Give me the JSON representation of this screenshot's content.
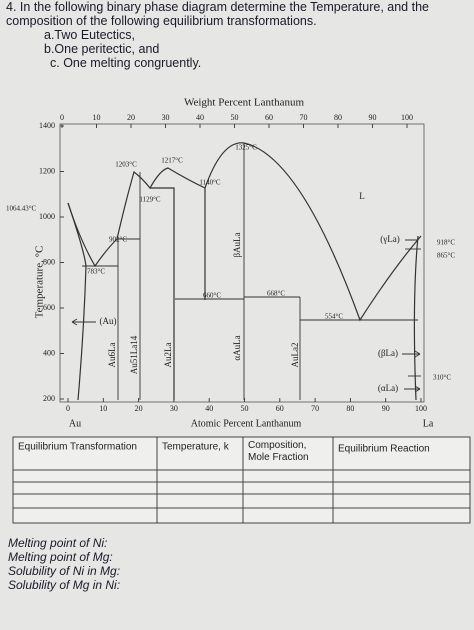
{
  "header": {
    "number": "4.",
    "question": "In the following binary phase diagram determine the Temperature, and the composition of the following equilibrium transformations.",
    "items": [
      "a.Two Eutectics,",
      "b.One peritectic, and",
      "c. One melting congruently."
    ]
  },
  "diagram": {
    "title": "Weight Percent Lanthanum",
    "top_ticks": [
      "0",
      "10",
      "20",
      "30",
      "40",
      "50",
      "60",
      "70",
      "80",
      "90",
      "100"
    ],
    "bottom_ticks": [
      "0",
      "10",
      "20",
      "30",
      "40",
      "50",
      "60",
      "70",
      "80",
      "90",
      "100"
    ],
    "y_label": "Temperature, °C",
    "y_ticks": [
      "1400",
      "1200",
      "1000",
      "800",
      "600",
      "400",
      "200"
    ],
    "special_tick": "1064.43°C",
    "left_element": "Au",
    "right_element": "La",
    "x_label": "Atomic Percent Lanthanum",
    "phases": [
      "(Au)",
      "Au6La",
      "Au51La14",
      "Au2La",
      "βAuLa",
      "αAuLa",
      "AuLa2",
      "L",
      "(γLa)",
      "(βLa)",
      "(αLa)"
    ],
    "temperatures": [
      "1203°C",
      "1217°C",
      "1129°C",
      "1325°C",
      "1140°C",
      "902°C",
      "783°C",
      "660°C",
      "668°C",
      "554°C",
      "918°C",
      "865°C",
      "310°C"
    ]
  },
  "table": {
    "headers": [
      "Equilibrium Transformation",
      "Temperature, k",
      "Composition, Mole Fraction",
      "Equilibrium Reaction"
    ]
  },
  "questions": [
    "Melting point of Ni:",
    "Melting point of Mg:",
    "Solubility of Ni in Mg:",
    "Solubility of Mg in Ni:"
  ]
}
